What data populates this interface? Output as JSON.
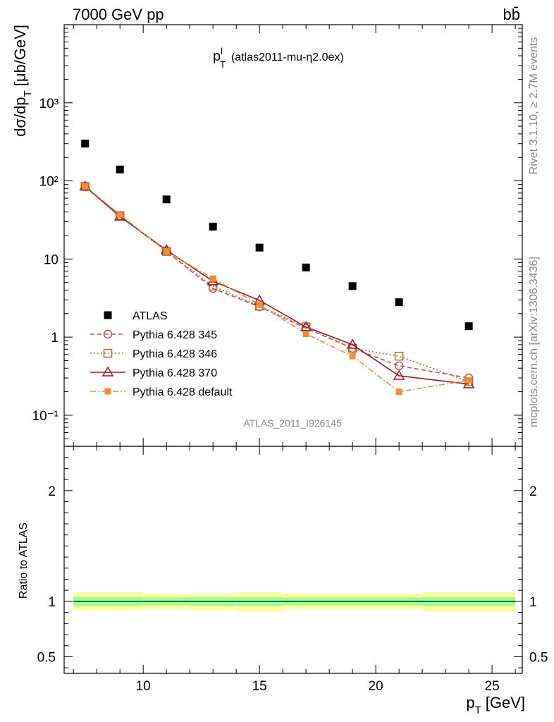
{
  "header": {
    "left": "7000 GeV pp",
    "right": "bb̄"
  },
  "side_labels": {
    "rivet": "Rivet 3.1.10, ≥ 2.7M events",
    "mcplots": "mcplots.cern.ch [arXiv:1306.3436]"
  },
  "chart_data": [
    {
      "type": "scatter",
      "title": "p_T^l (atlas2011-mu-η2.0ex)",
      "title_parts": {
        "main": "p",
        "sup": "l",
        "sub": "T",
        "tail": "(atlas2011-mu-η2.0ex)"
      },
      "analysis_label": "ATLAS_2011_I926145",
      "ylabel": "dσ/dp_T [μb/GeV]",
      "ylabel_parts": {
        "pre": "dσ/dp",
        "sub": "T",
        "post": "[μb/GeV]"
      },
      "yscale": "log",
      "xlim": [
        6.6,
        26.3
      ],
      "ylim": [
        0.04,
        10000
      ],
      "y_tick_labels": [
        "10⁻¹",
        "1",
        "10",
        "10²",
        "10³"
      ],
      "legend_position": "lower-left",
      "x": [
        7.5,
        9,
        11,
        13,
        15,
        17,
        19,
        21,
        24
      ],
      "series": [
        {
          "name": "ATLAS",
          "style": "data",
          "color": "#000000",
          "values": [
            300,
            140,
            58,
            26,
            14,
            7.8,
            4.5,
            2.8,
            1.38
          ]
        },
        {
          "name": "Pythia 6.428 345",
          "style": "circle-dashed",
          "color": "#c84c5c",
          "values": [
            84,
            36,
            12.5,
            4.2,
            2.45,
            1.3,
            0.72,
            0.43,
            0.3
          ]
        },
        {
          "name": "Pythia 6.428 346",
          "style": "square-dotted",
          "color": "#a07830",
          "values": [
            85,
            36,
            12.5,
            4.5,
            2.5,
            1.35,
            0.72,
            0.57,
            0.27
          ]
        },
        {
          "name": "Pythia 6.428 370",
          "style": "triangle-solid",
          "color": "#a01828",
          "values": [
            85,
            35,
            13,
            5.2,
            2.95,
            1.35,
            0.8,
            0.32,
            0.25
          ]
        },
        {
          "name": "Pythia 6.428 default",
          "style": "filledsquare-dashdot",
          "color": "#f58c34",
          "values": [
            86,
            37,
            12.5,
            5.6,
            2.6,
            1.1,
            0.57,
            0.2,
            0.28
          ]
        }
      ]
    },
    {
      "type": "area",
      "ylabel": "Ratio to ATLAS",
      "xlabel": "p_T [GeV]",
      "xlabel_parts": {
        "main": "p",
        "sub": "T",
        "post": "[GeV]"
      },
      "xlim": [
        6.6,
        26.3
      ],
      "ylim": [
        0.35,
        2.4
      ],
      "x_tick_labels": [
        "10",
        "15",
        "20",
        "25"
      ],
      "y_tick_labels": [
        "0.5",
        "1",
        "2"
      ],
      "band_edges": [
        7,
        8,
        10,
        12,
        14,
        16,
        18,
        20,
        22,
        26
      ],
      "band_inner": {
        "color": "#99ff99",
        "low": [
          0.96,
          0.96,
          0.965,
          0.96,
          0.96,
          0.965,
          0.965,
          0.965,
          0.96
        ],
        "high": [
          1.04,
          1.04,
          1.035,
          1.04,
          1.04,
          1.035,
          1.035,
          1.035,
          1.04
        ]
      },
      "band_outer": {
        "color": "#ffff99",
        "low": [
          0.92,
          0.92,
          0.93,
          0.92,
          0.91,
          0.93,
          0.93,
          0.93,
          0.91
        ],
        "high": [
          1.08,
          1.08,
          1.07,
          1.07,
          1.08,
          1.07,
          1.07,
          1.07,
          1.08
        ]
      },
      "reference_line": 1
    }
  ]
}
